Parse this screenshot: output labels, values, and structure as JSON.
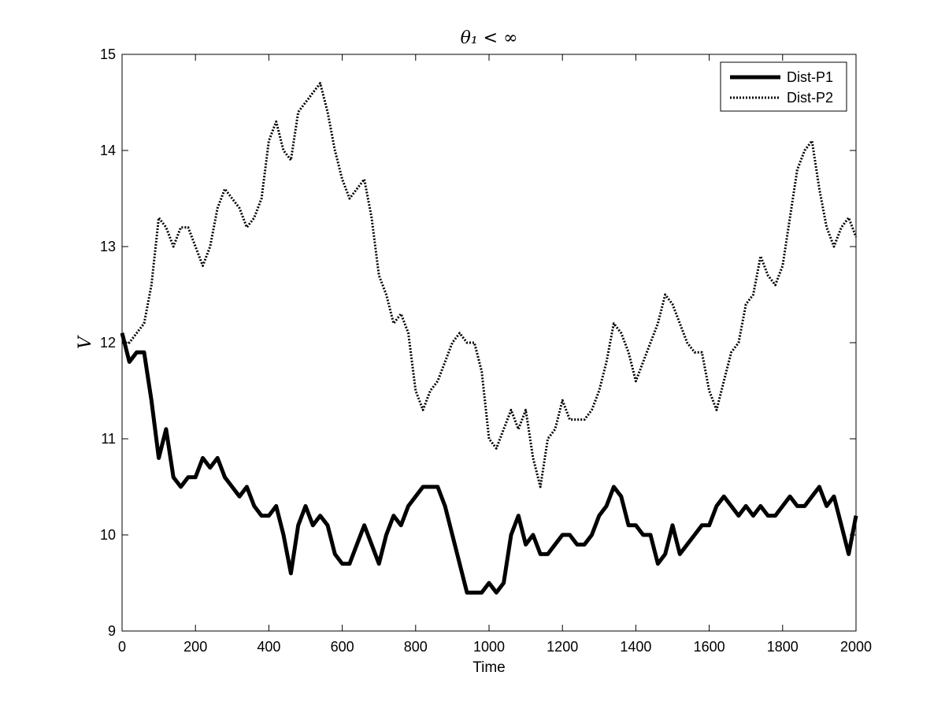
{
  "chart_data": {
    "type": "line",
    "title": "θ₁ < ∞",
    "xlabel": "Time",
    "ylabel": "V",
    "xlim": [
      0,
      2000
    ],
    "ylim": [
      9,
      15
    ],
    "xticks": [
      "0",
      "200",
      "400",
      "600",
      "800",
      "1000",
      "1200",
      "1400",
      "1600",
      "1800",
      "2000"
    ],
    "yticks": [
      "9",
      "10",
      "11",
      "12",
      "13",
      "14",
      "15"
    ],
    "grid": false,
    "legend_position": "top-right",
    "series": [
      {
        "name": "Dist-P1",
        "style": "solid-thick",
        "x": [
          0,
          20,
          40,
          60,
          80,
          100,
          120,
          140,
          160,
          180,
          200,
          220,
          240,
          260,
          280,
          300,
          320,
          340,
          360,
          380,
          400,
          420,
          440,
          460,
          480,
          500,
          520,
          540,
          560,
          580,
          600,
          620,
          640,
          660,
          680,
          700,
          720,
          740,
          760,
          780,
          800,
          820,
          840,
          860,
          880,
          900,
          920,
          940,
          960,
          980,
          1000,
          1020,
          1040,
          1060,
          1080,
          1100,
          1120,
          1140,
          1160,
          1180,
          1200,
          1220,
          1240,
          1260,
          1280,
          1300,
          1320,
          1340,
          1360,
          1380,
          1400,
          1420,
          1440,
          1460,
          1480,
          1500,
          1520,
          1540,
          1560,
          1580,
          1600,
          1620,
          1640,
          1660,
          1680,
          1700,
          1720,
          1740,
          1760,
          1780,
          1800,
          1820,
          1840,
          1860,
          1880,
          1900,
          1920,
          1940,
          1960,
          1980,
          2000
        ],
        "y": [
          12.1,
          11.8,
          11.9,
          11.9,
          11.4,
          10.8,
          11.1,
          10.6,
          10.5,
          10.6,
          10.6,
          10.8,
          10.7,
          10.8,
          10.6,
          10.5,
          10.4,
          10.5,
          10.3,
          10.2,
          10.2,
          10.3,
          10.0,
          9.6,
          10.1,
          10.3,
          10.1,
          10.2,
          10.1,
          9.8,
          9.7,
          9.7,
          9.9,
          10.1,
          9.9,
          9.7,
          10.0,
          10.2,
          10.1,
          10.3,
          10.4,
          10.5,
          10.5,
          10.5,
          10.3,
          10.0,
          9.7,
          9.4,
          9.4,
          9.4,
          9.5,
          9.4,
          9.5,
          10.0,
          10.2,
          9.9,
          10.0,
          9.8,
          9.8,
          9.9,
          10.0,
          10.0,
          9.9,
          9.9,
          10.0,
          10.2,
          10.3,
          10.5,
          10.4,
          10.1,
          10.1,
          10.0,
          10.0,
          9.7,
          9.8,
          10.1,
          9.8,
          9.9,
          10.0,
          10.1,
          10.1,
          10.3,
          10.4,
          10.3,
          10.2,
          10.3,
          10.2,
          10.3,
          10.2,
          10.2,
          10.3,
          10.4,
          10.3,
          10.3,
          10.4,
          10.5,
          10.3,
          10.4,
          10.1,
          9.8,
          10.2
        ]
      },
      {
        "name": "Dist-P2",
        "style": "dotted",
        "x": [
          0,
          20,
          40,
          60,
          80,
          100,
          120,
          140,
          160,
          180,
          200,
          220,
          240,
          260,
          280,
          300,
          320,
          340,
          360,
          380,
          400,
          420,
          440,
          460,
          480,
          500,
          520,
          540,
          560,
          580,
          600,
          620,
          640,
          660,
          680,
          700,
          720,
          740,
          760,
          780,
          800,
          820,
          840,
          860,
          880,
          900,
          920,
          940,
          960,
          980,
          1000,
          1020,
          1040,
          1060,
          1080,
          1100,
          1120,
          1140,
          1160,
          1180,
          1200,
          1220,
          1240,
          1260,
          1280,
          1300,
          1320,
          1340,
          1360,
          1380,
          1400,
          1420,
          1440,
          1460,
          1480,
          1500,
          1520,
          1540,
          1560,
          1580,
          1600,
          1620,
          1640,
          1660,
          1680,
          1700,
          1720,
          1740,
          1760,
          1780,
          1800,
          1820,
          1840,
          1860,
          1880,
          1900,
          1920,
          1940,
          1960,
          1980,
          2000
        ],
        "y": [
          12.0,
          12.0,
          12.1,
          12.2,
          12.6,
          13.3,
          13.2,
          13.0,
          13.2,
          13.2,
          13.0,
          12.8,
          13.0,
          13.4,
          13.6,
          13.5,
          13.4,
          13.2,
          13.3,
          13.5,
          14.1,
          14.3,
          14.0,
          13.9,
          14.4,
          14.5,
          14.6,
          14.7,
          14.4,
          14.0,
          13.7,
          13.5,
          13.6,
          13.7,
          13.3,
          12.7,
          12.5,
          12.2,
          12.3,
          12.1,
          11.5,
          11.3,
          11.5,
          11.6,
          11.8,
          12.0,
          12.1,
          12.0,
          12.0,
          11.7,
          11.0,
          10.9,
          11.1,
          11.3,
          11.1,
          11.3,
          10.8,
          10.5,
          11.0,
          11.1,
          11.4,
          11.2,
          11.2,
          11.2,
          11.3,
          11.5,
          11.8,
          12.2,
          12.1,
          11.9,
          11.6,
          11.8,
          12.0,
          12.2,
          12.5,
          12.4,
          12.2,
          12.0,
          11.9,
          11.9,
          11.5,
          11.3,
          11.6,
          11.9,
          12.0,
          12.4,
          12.5,
          12.9,
          12.7,
          12.6,
          12.8,
          13.3,
          13.8,
          14.0,
          14.1,
          13.6,
          13.2,
          13.0,
          13.2,
          13.3,
          13.1
        ]
      }
    ]
  }
}
